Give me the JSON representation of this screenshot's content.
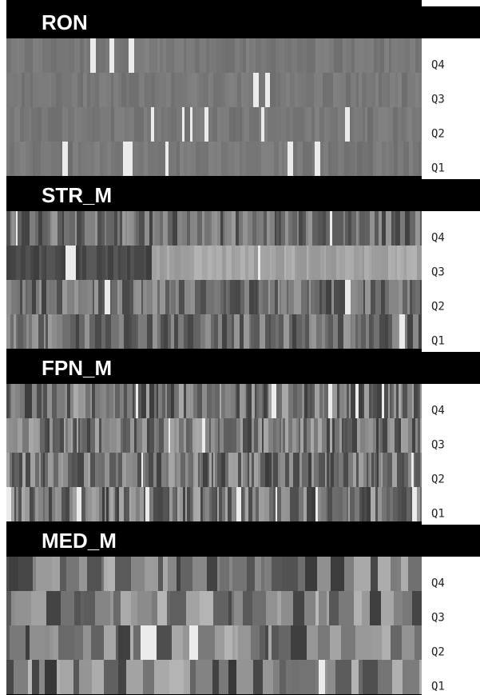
{
  "panels": [
    {
      "title": "RON",
      "rows": [
        "Q4",
        "Q3",
        "Q2",
        "Q1"
      ]
    },
    {
      "title": "STR_M",
      "rows": [
        "Q4",
        "Q3",
        "Q2",
        "Q1"
      ]
    },
    {
      "title": "FPN_M",
      "rows": [
        "Q4",
        "Q3",
        "Q2",
        "Q1"
      ]
    },
    {
      "title": "MED_M",
      "rows": [
        "Q4",
        "Q3",
        "Q2",
        "Q1"
      ]
    }
  ]
}
